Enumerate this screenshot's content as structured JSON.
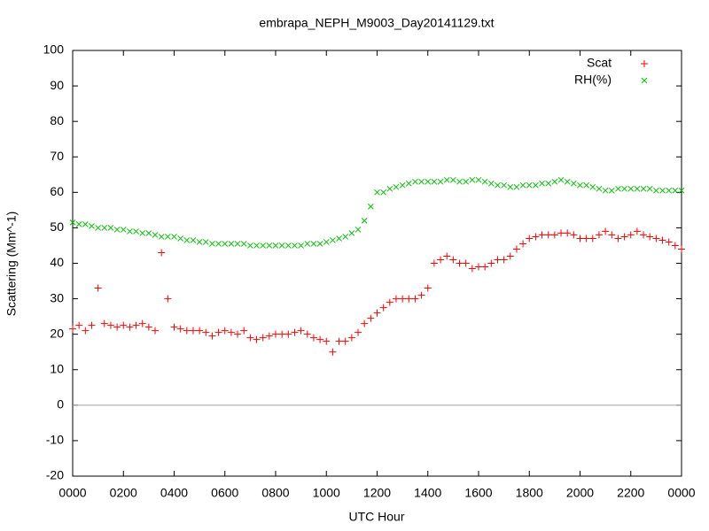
{
  "chart_data": {
    "type": "scatter",
    "title": "embrapa_NEPH_M9003_Day20141129.txt",
    "xlabel": "UTC Hour",
    "ylabel": "Scattering (Mm^-1)",
    "xlim": [
      0,
      24
    ],
    "ylim": [
      -20,
      100
    ],
    "xticks": [
      {
        "value": 0,
        "label": "0000"
      },
      {
        "value": 2,
        "label": "0200"
      },
      {
        "value": 4,
        "label": "0400"
      },
      {
        "value": 6,
        "label": "0600"
      },
      {
        "value": 8,
        "label": "0800"
      },
      {
        "value": 10,
        "label": "1000"
      },
      {
        "value": 12,
        "label": "1200"
      },
      {
        "value": 14,
        "label": "1400"
      },
      {
        "value": 16,
        "label": "1600"
      },
      {
        "value": 18,
        "label": "1800"
      },
      {
        "value": 20,
        "label": "2000"
      },
      {
        "value": 22,
        "label": "2200"
      },
      {
        "value": 24,
        "label": "0000"
      }
    ],
    "yticks": [
      -20,
      -10,
      0,
      10,
      20,
      30,
      40,
      50,
      60,
      70,
      80,
      90,
      100
    ],
    "zero_axis": true,
    "legend": "upper right",
    "x": [
      0,
      0.25,
      0.5,
      0.75,
      1,
      1.25,
      1.5,
      1.75,
      2,
      2.25,
      2.5,
      2.75,
      3,
      3.25,
      3.5,
      3.75,
      4,
      4.25,
      4.5,
      4.75,
      5,
      5.25,
      5.5,
      5.75,
      6,
      6.25,
      6.5,
      6.75,
      7,
      7.25,
      7.5,
      7.75,
      8,
      8.25,
      8.5,
      8.75,
      9,
      9.25,
      9.5,
      9.75,
      10,
      10.25,
      10.5,
      10.75,
      11,
      11.25,
      11.5,
      11.75,
      12,
      12.25,
      12.5,
      12.75,
      13,
      13.25,
      13.5,
      13.75,
      14,
      14.25,
      14.5,
      14.75,
      15,
      15.25,
      15.5,
      15.75,
      16,
      16.25,
      16.5,
      16.75,
      17,
      17.25,
      17.5,
      17.75,
      18,
      18.25,
      18.5,
      18.75,
      19,
      19.25,
      19.5,
      19.75,
      20,
      20.25,
      20.5,
      20.75,
      21,
      21.25,
      21.5,
      21.75,
      22,
      22.25,
      22.5,
      22.75,
      23,
      23.25,
      23.5,
      23.75,
      24
    ],
    "series": [
      {
        "name": "Scat",
        "color": "#ff0000",
        "marker": "plus",
        "values": [
          21.5,
          22.5,
          21,
          22.5,
          33,
          23,
          22.5,
          22,
          22.5,
          22,
          22.5,
          23,
          22,
          21,
          43,
          30,
          22,
          21.5,
          21,
          21,
          21,
          20.5,
          19.5,
          20.5,
          21,
          20.5,
          20,
          21,
          19,
          18.5,
          19,
          19.5,
          20,
          20,
          20,
          20.5,
          21,
          20,
          19,
          18.5,
          18,
          15,
          18,
          18,
          19,
          20.5,
          23,
          24.5,
          26,
          27.5,
          29,
          30,
          30,
          30,
          30,
          31,
          33,
          40,
          41,
          42,
          41,
          40,
          40,
          38.5,
          39,
          39,
          40,
          41,
          41,
          42,
          44,
          45.5,
          47,
          47.5,
          48,
          48,
          48,
          48.5,
          48.5,
          48,
          47,
          47,
          47,
          48,
          49,
          48,
          47,
          47.5,
          48,
          49,
          48,
          47.5,
          47,
          46.5,
          46,
          45,
          44
        ]
      },
      {
        "name": "RH(%)",
        "color": "#00c000",
        "marker": "cross",
        "values": [
          51.5,
          51,
          51,
          50.5,
          50,
          50,
          50,
          49.5,
          49.5,
          49,
          49,
          48.5,
          48.5,
          48,
          47.5,
          47.5,
          47.5,
          47,
          46.5,
          46.5,
          46,
          46,
          45.5,
          45.5,
          45.5,
          45.5,
          45.5,
          45.5,
          45,
          45,
          45,
          45,
          45,
          45,
          45,
          45,
          45,
          45.5,
          45.5,
          45.5,
          46,
          46.5,
          47,
          47.5,
          48.5,
          49.5,
          52,
          56,
          60,
          60,
          61,
          61.5,
          62,
          62.5,
          63,
          63,
          63,
          63,
          63,
          63.5,
          63.5,
          63,
          63,
          63.5,
          63.5,
          63,
          62.5,
          62,
          62,
          61.5,
          61.5,
          62,
          62,
          62,
          62.5,
          62.5,
          63,
          63.5,
          63,
          62.5,
          62,
          62,
          61.5,
          61,
          60.5,
          60.5,
          61,
          61,
          61,
          61,
          61,
          61,
          60.5,
          60.5,
          60.5,
          60.5,
          60.5
        ]
      }
    ]
  }
}
